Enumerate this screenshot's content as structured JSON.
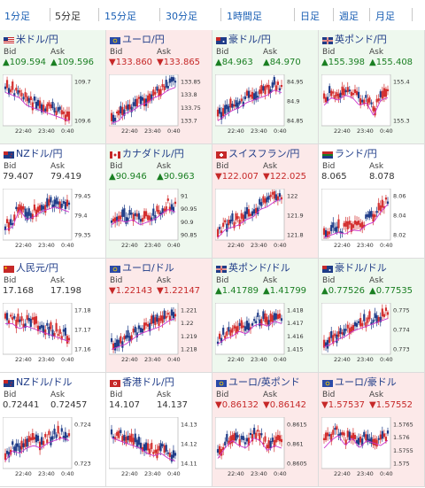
{
  "tabs": [
    {
      "label": "1分足",
      "active": false
    },
    {
      "label": "5分足",
      "active": true
    },
    {
      "label": "15分足",
      "active": false
    },
    {
      "label": "30分足",
      "active": false
    },
    {
      "label": "1時間足",
      "active": false
    },
    {
      "label": "日足",
      "active": false
    },
    {
      "label": "週足",
      "active": false
    },
    {
      "label": "月足",
      "active": false
    }
  ],
  "labels": {
    "bid": "Bid",
    "ask": "Ask"
  },
  "colors": {
    "up": "#1a7f22",
    "down": "#c62828",
    "up_bg": "#eef8ee",
    "down_bg": "#fce9e9",
    "link": "#1f3c88",
    "ma": "#cc33cc"
  },
  "pairs": [
    {
      "name": "米ドル/円",
      "dir": "up",
      "bid": "▲109.594",
      "ask": "▲109.596",
      "ticks": [
        "109.7",
        "109.6"
      ],
      "times": [
        "22:40",
        "23:40",
        "0:40"
      ],
      "flag": "us"
    },
    {
      "name": "ユーロ/円",
      "dir": "down",
      "bid": "▼133.860",
      "ask": "▼133.865",
      "ticks": [
        "133.85",
        "133.8",
        "133.75",
        "133.7"
      ],
      "times": [
        "22:40",
        "23:40",
        "0:40"
      ],
      "flag": "eu"
    },
    {
      "name": "豪ドル/円",
      "dir": "up",
      "bid": "▲84.963",
      "ask": "▲84.970",
      "ticks": [
        "84.95",
        "84.9",
        "84.85"
      ],
      "times": [
        "22:40",
        "23:40",
        "0:40"
      ],
      "flag": "au"
    },
    {
      "name": "英ポンド/円",
      "dir": "up",
      "bid": "▲155.398",
      "ask": "▲155.408",
      "ticks": [
        "155.4",
        "155.3"
      ],
      "times": [
        "22:40",
        "23:40",
        "0:40"
      ],
      "flag": "gb"
    },
    {
      "name": "NZドル/円",
      "dir": "flat",
      "bid": "79.407",
      "ask": "79.419",
      "ticks": [
        "79.45",
        "79.4",
        "79.35"
      ],
      "times": [
        "22:40",
        "23:40",
        "0:40"
      ],
      "flag": "nz"
    },
    {
      "name": "カナダドル/円",
      "dir": "up",
      "bid": "▲90.946",
      "ask": "▲90.963",
      "ticks": [
        "91",
        "90.95",
        "90.9",
        "90.85"
      ],
      "times": [
        "22:40",
        "23:40",
        "0:40"
      ],
      "flag": "ca"
    },
    {
      "name": "スイスフラン/円",
      "dir": "down",
      "bid": "▼122.007",
      "ask": "▼122.025",
      "ticks": [
        "122",
        "121.9",
        "121.8"
      ],
      "times": [
        "22:40",
        "23:40",
        "0:40"
      ],
      "flag": "ch"
    },
    {
      "name": "ランド/円",
      "dir": "flat",
      "bid": "8.065",
      "ask": "8.078",
      "ticks": [
        "8.06",
        "8.04",
        "8.02"
      ],
      "times": [
        "22:40",
        "23:40",
        "0:40"
      ],
      "flag": "za"
    },
    {
      "name": "人民元/円",
      "dir": "flat",
      "bid": "17.168",
      "ask": "17.198",
      "ticks": [
        "17.18",
        "17.17",
        "17.16"
      ],
      "times": [
        "22:40",
        "23:40",
        "0:40"
      ],
      "flag": "cn"
    },
    {
      "name": "ユーロ/ドル",
      "dir": "down",
      "bid": "▼1.22143",
      "ask": "▼1.22147",
      "ticks": [
        "1.221",
        "1.22",
        "1.219",
        "1.218"
      ],
      "times": [
        "22:40",
        "23:40",
        "0:40"
      ],
      "flag": "eu"
    },
    {
      "name": "英ポンド/ドル",
      "dir": "up",
      "bid": "▲1.41789",
      "ask": "▲1.41799",
      "ticks": [
        "1.418",
        "1.417",
        "1.416",
        "1.415"
      ],
      "times": [
        "22:40",
        "23:40",
        "0:40"
      ],
      "flag": "gb"
    },
    {
      "name": "豪ドル/ドル",
      "dir": "up",
      "bid": "▲0.77526",
      "ask": "▲0.77535",
      "ticks": [
        "0.775",
        "0.774",
        "0.773"
      ],
      "times": [
        "22:40",
        "23:40",
        "0:40"
      ],
      "flag": "au"
    },
    {
      "name": "NZドル/ドル",
      "dir": "flat",
      "bid": "0.72441",
      "ask": "0.72457",
      "ticks": [
        "0.724",
        "0.723"
      ],
      "times": [
        "22:40",
        "23:40",
        "0:40"
      ],
      "flag": "nz"
    },
    {
      "name": "香港ドル/円",
      "dir": "flat",
      "bid": "14.107",
      "ask": "14.137",
      "ticks": [
        "14.13",
        "14.12",
        "14.11"
      ],
      "times": [
        "22:40",
        "23:40",
        "0:40"
      ],
      "flag": "hk"
    },
    {
      "name": "ユーロ/英ポンド",
      "dir": "down",
      "bid": "▼0.86132",
      "ask": "▼0.86142",
      "ticks": [
        "0.8615",
        "0.861",
        "0.8605"
      ],
      "times": [
        "22:40",
        "23:40",
        "0:40"
      ],
      "flag": "eu"
    },
    {
      "name": "ユーロ/豪ドル",
      "dir": "down",
      "bid": "▼1.57537",
      "ask": "▼1.57552",
      "ticks": [
        "1.5765",
        "1.576",
        "1.5755",
        "1.575"
      ],
      "times": [
        "22:40",
        "23:40",
        "0:40"
      ],
      "flag": "eu"
    }
  ]
}
